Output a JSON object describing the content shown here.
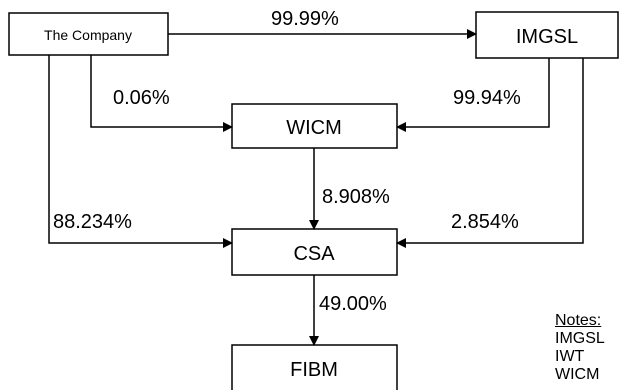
{
  "nodes": {
    "company": "The Company",
    "imgsl": "IMGSL",
    "wicm": "WICM",
    "csa": "CSA",
    "fibm": "FIBM"
  },
  "edges": {
    "company_imgsl": "99.99%",
    "company_wicm": "0.06%",
    "imgsl_wicm": "99.94%",
    "wicm_csa": "8.908%",
    "company_csa": "88.234%",
    "imgsl_csa": "2.854%",
    "csa_fibm": "49.00%"
  },
  "notes": {
    "title": "Notes:",
    "items": [
      "IMGSL",
      "IWT",
      "WICM"
    ]
  }
}
